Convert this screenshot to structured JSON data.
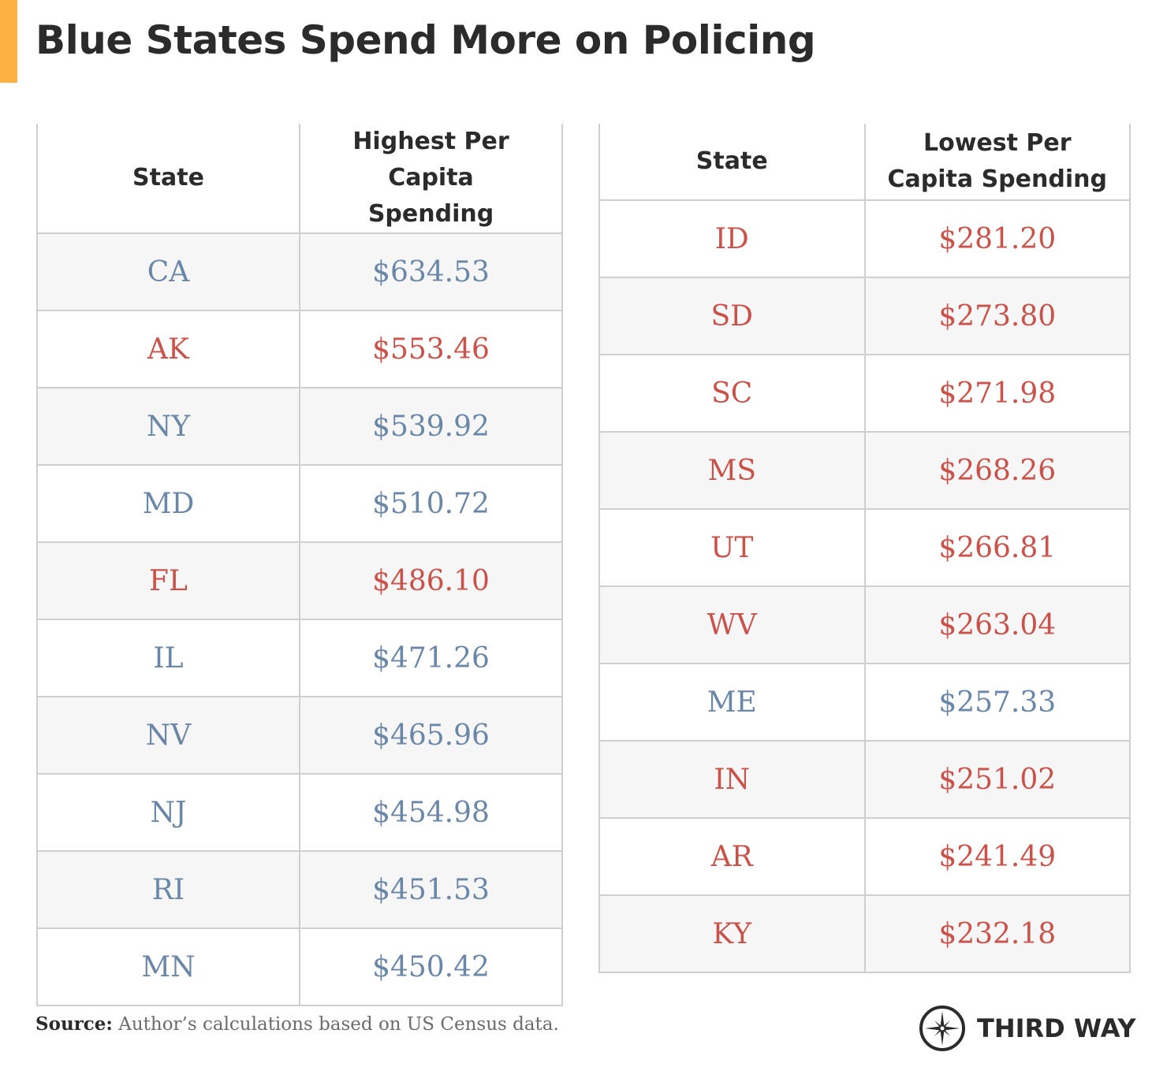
{
  "title": "Blue States Spend More on Policing",
  "colors": {
    "accent": "#fbb040",
    "blue": "#6b87a8",
    "red": "#c9524a"
  },
  "chart_data": [
    {
      "type": "table",
      "columns": [
        "State",
        "Highest Per Capita Spending"
      ],
      "rows": [
        {
          "state": "CA",
          "value": "$634.53",
          "party": "blue"
        },
        {
          "state": "AK",
          "value": "$553.46",
          "party": "red"
        },
        {
          "state": "NY",
          "value": "$539.92",
          "party": "blue"
        },
        {
          "state": "MD",
          "value": "$510.72",
          "party": "blue"
        },
        {
          "state": "FL",
          "value": "$486.10",
          "party": "red"
        },
        {
          "state": "IL",
          "value": "$471.26",
          "party": "blue"
        },
        {
          "state": "NV",
          "value": "$465.96",
          "party": "blue"
        },
        {
          "state": "NJ",
          "value": "$454.98",
          "party": "blue"
        },
        {
          "state": "RI",
          "value": "$451.53",
          "party": "blue"
        },
        {
          "state": "MN",
          "value": "$450.42",
          "party": "blue"
        }
      ]
    },
    {
      "type": "table",
      "columns": [
        "State",
        "Lowest Per Capita Spending"
      ],
      "rows": [
        {
          "state": "ID",
          "value": "$281.20",
          "party": "red"
        },
        {
          "state": "SD",
          "value": "$273.80",
          "party": "red"
        },
        {
          "state": "SC",
          "value": "$271.98",
          "party": "red"
        },
        {
          "state": "MS",
          "value": "$268.26",
          "party": "red"
        },
        {
          "state": "UT",
          "value": "$266.81",
          "party": "red"
        },
        {
          "state": "WV",
          "value": "$263.04",
          "party": "red"
        },
        {
          "state": "ME",
          "value": "$257.33",
          "party": "blue"
        },
        {
          "state": "IN",
          "value": "$251.02",
          "party": "red"
        },
        {
          "state": "AR",
          "value": "$241.49",
          "party": "red"
        },
        {
          "state": "KY",
          "value": "$232.18",
          "party": "red"
        }
      ]
    }
  ],
  "footer": {
    "source_label": "Source:",
    "source_text": "Author’s calculations based on US Census data.",
    "logo_text": "THIRD WAY",
    "logo_icon": "compass-star-icon"
  }
}
